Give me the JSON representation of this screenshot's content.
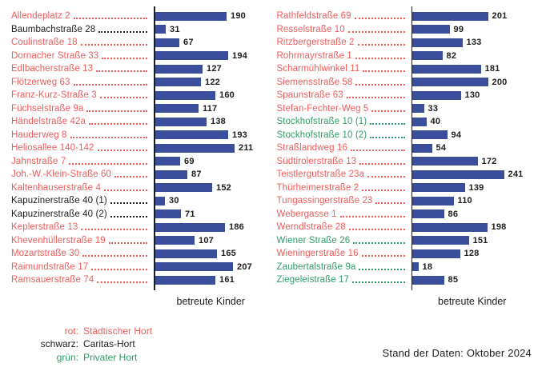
{
  "colors": {
    "rot": "#F15B5B",
    "schwarz": "#1D1D1B",
    "gruen": "#2F9D69",
    "bar": "#3B4E9C"
  },
  "chart_data": [
    {
      "type": "bar",
      "title": "",
      "xlabel": "betreute Kinder",
      "ylabel": "",
      "xlim": [
        0,
        250
      ],
      "bar_color": "#3B4E9C",
      "legend_position": "bottom-left",
      "grid": false,
      "categories": [
        "Allendeplatz 2",
        "Baumbachstraße 28",
        "Coulinstraße 18",
        "Dornacher Straße 33",
        "Edlbacherstraße 13",
        "Flötzerweg 63",
        "Franz-Kurz-Straße 3",
        "Füchselstraße 9a",
        "Händelstraße 42a",
        "Hauderweg 8",
        "Heliosallee 140-142",
        "Jahnstraße 7",
        "Joh.-W.-Klein-Straße 60",
        "Kaltenhauserstraße 4",
        "Kapuzinerstraße 40 (1)",
        "Kapuzinerstraße 40 (2)",
        "Keplerstraße 13",
        "Khevenhüllerstraße 19",
        "Mozartstraße 30",
        "Raimundstraße 17",
        "Ramsauerstraße 74"
      ],
      "values": [
        190,
        31,
        67,
        194,
        127,
        122,
        160,
        117,
        138,
        193,
        211,
        69,
        87,
        152,
        30,
        71,
        186,
        107,
        165,
        207,
        161
      ],
      "category_types": [
        "rot",
        "schwarz",
        "rot",
        "rot",
        "rot",
        "rot",
        "rot",
        "rot",
        "rot",
        "rot",
        "rot",
        "rot",
        "rot",
        "rot",
        "schwarz",
        "schwarz",
        "rot",
        "rot",
        "rot",
        "rot",
        "rot"
      ]
    },
    {
      "type": "bar",
      "title": "",
      "xlabel": "betreute Kinder",
      "ylabel": "",
      "xlim": [
        0,
        250
      ],
      "bar_color": "#3B4E9C",
      "grid": false,
      "categories": [
        "Rathfeldstraße 69",
        "Resselstraße 10",
        "Ritzbergerstraße 2",
        "Rohrmayrstraße 1",
        "Scharmühlwinkel 11",
        "Siemensstraße 58",
        "Spaunstraße 63",
        "Stefan-Fechter-Weg 5",
        "Stockhofstraße 10 (1)",
        "Stockhofstraße 10 (2)",
        "Straßlandweg 16",
        "Südtirolerstraße 13",
        "Teistlergutstraße 23a",
        "Thürheimerstraße 2",
        "Tungassingerstraße 23",
        "Webergasse 1",
        "Werndlstraße 28",
        "Wiener Straße 26",
        "Wieningerstraße 16",
        "Zaubertalstraße 9a",
        "Ziegeleistraße 17"
      ],
      "values": [
        201,
        99,
        133,
        82,
        181,
        200,
        130,
        33,
        40,
        94,
        54,
        172,
        241,
        139,
        110,
        86,
        198,
        151,
        128,
        18,
        85
      ],
      "category_types": [
        "rot",
        "rot",
        "rot",
        "rot",
        "rot",
        "rot",
        "rot",
        "rot",
        "gruen",
        "gruen",
        "rot",
        "rot",
        "rot",
        "rot",
        "rot",
        "rot",
        "rot",
        "gruen",
        "rot",
        "gruen",
        "gruen"
      ]
    }
  ],
  "legend": {
    "items": [
      {
        "term": "rot:",
        "description": "Städtischer Hort",
        "color_key": "rot"
      },
      {
        "term": "schwarz:",
        "description": "Caritas-Hort",
        "color_key": "schwarz"
      },
      {
        "term": "grün:",
        "description": "Privater Hort",
        "color_key": "gruen"
      }
    ]
  },
  "footer": {
    "data_status": "Stand der Daten: Oktober 2024"
  }
}
